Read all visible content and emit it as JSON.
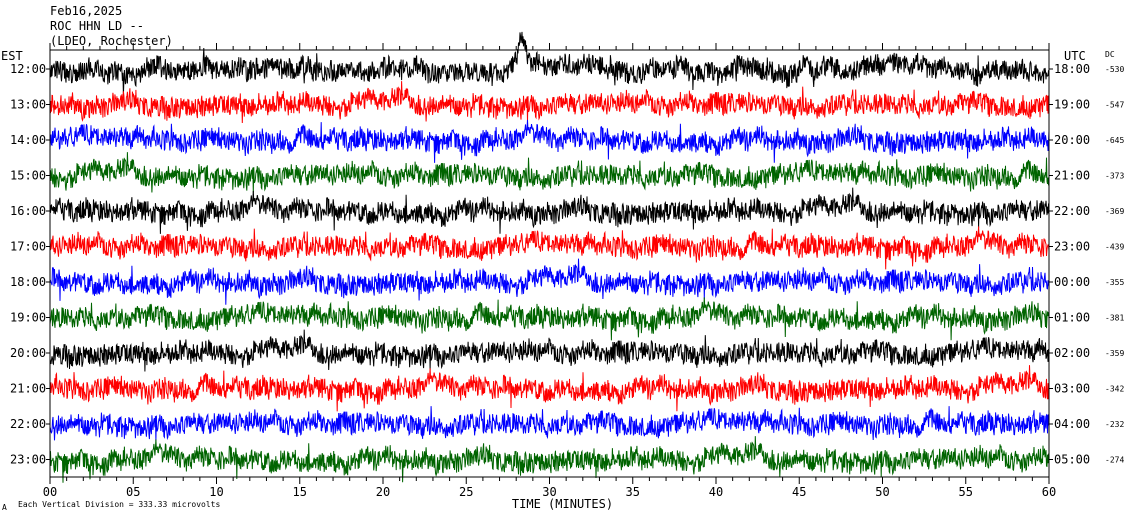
{
  "header": {
    "date": "Feb16,2025",
    "station": "ROC HHN LD --",
    "location": "(LDEO, Rochester)"
  },
  "footer": {
    "scale_text": "Each Vertical Division = 333.33 microvolts",
    "marker": "A"
  },
  "chart_data": {
    "type": "line",
    "title": "ROC HHN LD --",
    "xlabel": "TIME (MINUTES)",
    "xlim": [
      0,
      60
    ],
    "x_ticks": [
      "00",
      "05",
      "10",
      "15",
      "20",
      "25",
      "30",
      "35",
      "40",
      "45",
      "50",
      "55",
      "60"
    ],
    "left_axis_label": "EST",
    "right_axis_label": "UTC",
    "dc_label": "DC",
    "trace_colors": [
      "#000000",
      "#ff0000",
      "#0000ff",
      "#006400"
    ],
    "rows": [
      {
        "est": "12:00",
        "utc": "18:00",
        "dc": "-530"
      },
      {
        "est": "13:00",
        "utc": "19:00",
        "dc": "-547"
      },
      {
        "est": "14:00",
        "utc": "20:00",
        "dc": "-645"
      },
      {
        "est": "15:00",
        "utc": "21:00",
        "dc": "-373"
      },
      {
        "est": "16:00",
        "utc": "22:00",
        "dc": "-369"
      },
      {
        "est": "17:00",
        "utc": "23:00",
        "dc": "-439"
      },
      {
        "est": "18:00",
        "utc": "00:00",
        "dc": "-355"
      },
      {
        "est": "19:00",
        "utc": "01:00",
        "dc": "-381"
      },
      {
        "est": "20:00",
        "utc": "02:00",
        "dc": "-359"
      },
      {
        "est": "21:00",
        "utc": "03:00",
        "dc": "-342"
      },
      {
        "est": "22:00",
        "utc": "04:00",
        "dc": "-232"
      },
      {
        "est": "23:00",
        "utc": "05:00",
        "dc": "-274"
      }
    ],
    "events": [
      {
        "row": 0,
        "minute": 28.3,
        "label": ""
      }
    ]
  }
}
